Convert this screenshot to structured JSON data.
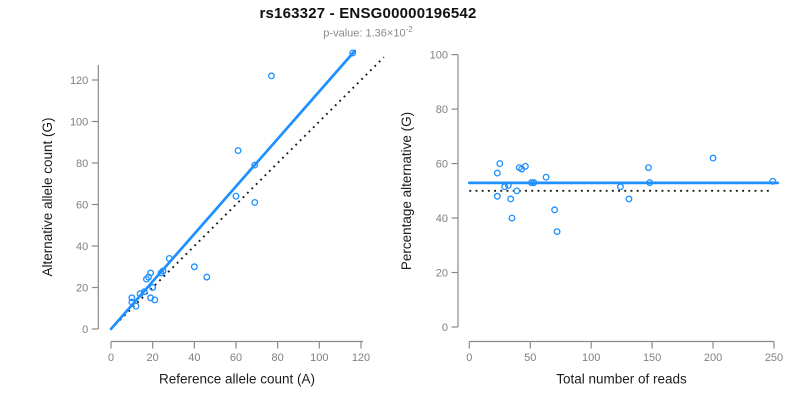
{
  "header": {
    "title": "rs163327 - ENSG00000196542",
    "pvalue_prefix": "p-value: ",
    "pvalue_base": "1.36×10",
    "pvalue_exponent": "-2"
  },
  "colors": {
    "accent_blue": "#1e90ff",
    "reference_black": "#1a1a1a",
    "axis_gray": "#8a8a8a",
    "tick_label_gray": "#7f7f7f",
    "axis_title_black": "#1c1c1c"
  },
  "chart_data": [
    {
      "id": "allele-counts-scatter",
      "type": "scatter",
      "xlabel": "Reference allele count (A)",
      "ylabel": "Alternative allele count (G)",
      "xticks": [
        0,
        20,
        40,
        60,
        80,
        100,
        120
      ],
      "yticks": [
        0,
        20,
        40,
        60,
        80,
        100,
        120
      ],
      "xlim": [
        0,
        131
      ],
      "ylim": [
        0,
        134
      ],
      "grid": false,
      "legend": "none",
      "points": [
        [
          10,
          15
        ],
        [
          10,
          13
        ],
        [
          12,
          11
        ],
        [
          14,
          17
        ],
        [
          16,
          18
        ],
        [
          19,
          15
        ],
        [
          21,
          14
        ],
        [
          20,
          20
        ],
        [
          17,
          24
        ],
        [
          18,
          25
        ],
        [
          19,
          27
        ],
        [
          24,
          27
        ],
        [
          25,
          28
        ],
        [
          28,
          34
        ],
        [
          40,
          30
        ],
        [
          46,
          25
        ],
        [
          60,
          64
        ],
        [
          61,
          86
        ],
        [
          69,
          61
        ],
        [
          69,
          79
        ],
        [
          77,
          122
        ],
        [
          116,
          133
        ]
      ],
      "fit_line": {
        "style": "solid",
        "x1": 0,
        "y1": 0,
        "x2": 117,
        "y2": 134,
        "meaning": "regression fit"
      },
      "reference_line": {
        "style": "dotted",
        "x1": 0,
        "y1": 0,
        "x2": 131,
        "y2": 131,
        "meaning": "identity y=x"
      }
    },
    {
      "id": "percentage-vs-reads-scatter",
      "type": "scatter",
      "xlabel": "Total number of reads",
      "ylabel": "Percentage alternative (G)",
      "xticks": [
        0,
        50,
        100,
        150,
        200,
        250
      ],
      "yticks": [
        0,
        20,
        40,
        60,
        80,
        100
      ],
      "xlim": [
        0,
        254
      ],
      "ylim": [
        0,
        100
      ],
      "grid": false,
      "legend": "none",
      "points": [
        [
          25,
          60
        ],
        [
          23,
          56.5
        ],
        [
          23,
          48
        ],
        [
          29,
          51.5
        ],
        [
          32,
          52
        ],
        [
          34,
          47
        ],
        [
          35,
          40
        ],
        [
          39,
          50
        ],
        [
          41,
          58.5
        ],
        [
          43,
          58
        ],
        [
          46,
          59
        ],
        [
          51,
          53
        ],
        [
          53,
          53
        ],
        [
          63,
          55
        ],
        [
          70,
          43
        ],
        [
          72,
          35
        ],
        [
          124,
          51.5
        ],
        [
          131,
          47
        ],
        [
          148,
          53
        ],
        [
          147,
          58.5
        ],
        [
          200,
          62
        ],
        [
          249,
          53.5
        ]
      ],
      "fit_line": {
        "style": "solid",
        "x1": 0,
        "y1": 52.9,
        "x2": 253,
        "y2": 52.9,
        "meaning": "mean percentage"
      },
      "reference_line": {
        "style": "dotted",
        "x1": 0,
        "y1": 50,
        "x2": 247,
        "y2": 50,
        "meaning": "null 50%"
      }
    }
  ]
}
